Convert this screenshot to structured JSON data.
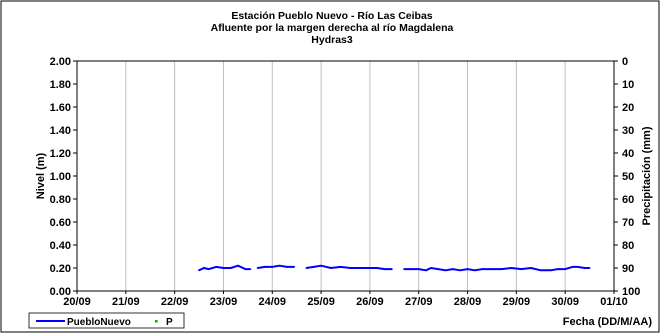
{
  "chart_data": {
    "type": "line",
    "title_lines": [
      "Estación Pueblo Nuevo - Río Las Ceibas",
      "Afluente por la margen derecha al río Magdalena",
      "Hydras3"
    ],
    "ylabel_left": "Nivel (m)",
    "ylabel_right": "Precipitación (mm)",
    "xlabel": "Fecha (DD/M/AA)",
    "x_ticks": [
      "20/09",
      "21/09",
      "22/09",
      "23/09",
      "24/09",
      "25/09",
      "26/09",
      "27/09",
      "28/09",
      "29/09",
      "30/09",
      "01/10"
    ],
    "y_left_ticks": [
      "0.00",
      "0.20",
      "0.40",
      "0.60",
      "0.80",
      "1.00",
      "1.20",
      "1.40",
      "1.60",
      "1.80",
      "2.00"
    ],
    "y_right_ticks": [
      "100",
      "90",
      "80",
      "70",
      "60",
      "50",
      "40",
      "30",
      "20",
      "10",
      "0"
    ],
    "ylim_left": [
      0,
      2
    ],
    "ylim_right": [
      100,
      0
    ],
    "grid": "vertical",
    "legend": [
      "PuebloNuevo",
      "P"
    ],
    "legend_position": "bottom-left",
    "colors": {
      "series": "#0000ff",
      "precip": "#00aa00",
      "grid": "#c0c0c0",
      "frame": "#000000",
      "legend_border": "#000000"
    },
    "series": [
      {
        "name": "PuebloNuevo",
        "x": [
          2.5,
          2.6,
          2.7,
          2.85,
          3.0,
          3.15,
          3.3,
          3.45,
          3.55,
          3.65,
          3.7,
          3.85,
          4.0,
          4.15,
          4.3,
          4.45,
          4.6,
          4.7,
          4.85,
          5.0,
          5.2,
          5.4,
          5.6,
          5.8,
          6.0,
          6.15,
          6.3,
          6.45,
          6.55,
          6.7,
          6.85,
          7.0,
          7.15,
          7.25,
          7.4,
          7.55,
          7.7,
          7.85,
          8.0,
          8.15,
          8.3,
          8.5,
          8.7,
          8.9,
          9.1,
          9.3,
          9.5,
          9.7,
          9.85,
          10.0,
          10.15,
          10.25,
          10.4,
          10.5
        ],
        "y": [
          0.18,
          0.2,
          0.19,
          0.21,
          0.2,
          0.2,
          0.22,
          0.19,
          0.19,
          null,
          0.2,
          0.21,
          0.21,
          0.22,
          0.21,
          0.21,
          null,
          0.2,
          0.21,
          0.22,
          0.2,
          0.21,
          0.2,
          0.2,
          0.2,
          0.2,
          0.19,
          0.19,
          null,
          0.19,
          0.19,
          0.19,
          0.18,
          0.2,
          0.19,
          0.18,
          0.19,
          0.18,
          0.19,
          0.18,
          0.19,
          0.19,
          0.19,
          0.2,
          0.19,
          0.2,
          0.18,
          0.18,
          0.19,
          0.19,
          0.21,
          0.21,
          0.2,
          0.2
        ]
      },
      {
        "name": "P",
        "x": [],
        "y": []
      }
    ]
  }
}
